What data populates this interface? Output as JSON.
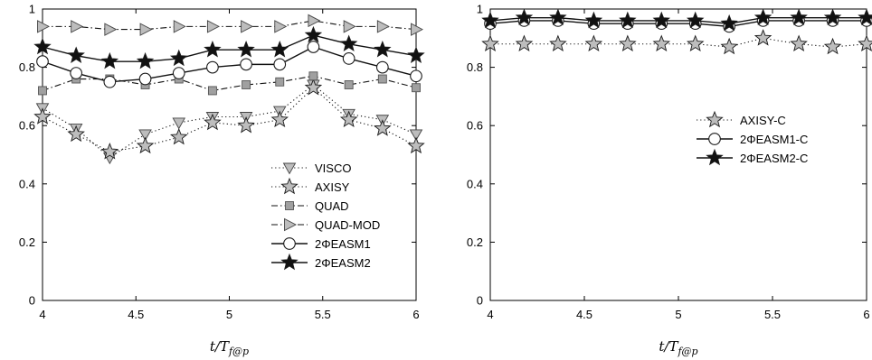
{
  "chart_data": [
    {
      "type": "line",
      "xlabel": "t/T_{f@p}",
      "xlabel_main": "t/T",
      "xlabel_sub": "f@p",
      "ylabel": "",
      "xlim": [
        4,
        6
      ],
      "ylim": [
        0,
        1
      ],
      "xticks": [
        "4",
        "4.5",
        "5",
        "5.5",
        "6"
      ],
      "yticks": [
        "0",
        "0.2",
        "0.4",
        "0.6",
        "0.8",
        "1"
      ],
      "legend_position": "bottom-right",
      "x": [
        4,
        4.18,
        4.36,
        4.55,
        4.73,
        4.91,
        5.09,
        5.27,
        5.45,
        5.64,
        5.82,
        6
      ],
      "series": [
        {
          "name": "VISCO",
          "marker": "triangle-down",
          "line": "dotted",
          "fill": "#bdbdbd",
          "values": [
            0.66,
            0.59,
            0.49,
            0.57,
            0.61,
            0.63,
            0.63,
            0.65,
            0.74,
            0.64,
            0.62,
            0.57
          ]
        },
        {
          "name": "AXISY",
          "marker": "star",
          "line": "dotted",
          "fill": "#bdbdbd",
          "values": [
            0.63,
            0.57,
            0.51,
            0.53,
            0.56,
            0.61,
            0.6,
            0.62,
            0.73,
            0.62,
            0.59,
            0.53
          ]
        },
        {
          "name": "QUAD",
          "marker": "square",
          "line": "dashdot",
          "fill": "#a0a0a0",
          "values": [
            0.72,
            0.76,
            0.76,
            0.74,
            0.76,
            0.72,
            0.74,
            0.75,
            0.77,
            0.74,
            0.76,
            0.73
          ]
        },
        {
          "name": "QUAD-MOD",
          "marker": "triangle-right",
          "line": "dashdot",
          "fill": "#bdbdbd",
          "values": [
            0.94,
            0.94,
            0.93,
            0.93,
            0.94,
            0.94,
            0.94,
            0.94,
            0.96,
            0.94,
            0.94,
            0.93
          ]
        },
        {
          "name": "2ΦEASM1",
          "marker": "circle",
          "line": "solid",
          "fill": "#ffffff",
          "values": [
            0.82,
            0.78,
            0.75,
            0.76,
            0.78,
            0.8,
            0.81,
            0.81,
            0.87,
            0.83,
            0.8,
            0.77
          ]
        },
        {
          "name": "2ΦEASM2",
          "marker": "star",
          "line": "solid",
          "fill": "#111111",
          "values": [
            0.87,
            0.84,
            0.82,
            0.82,
            0.83,
            0.86,
            0.86,
            0.86,
            0.91,
            0.88,
            0.86,
            0.84
          ]
        }
      ]
    },
    {
      "type": "line",
      "xlabel": "t/T_{f@p}",
      "xlabel_main": "t/T",
      "xlabel_sub": "f@p",
      "ylabel": "",
      "xlim": [
        4,
        6
      ],
      "ylim": [
        0,
        1
      ],
      "xticks": [
        "4",
        "4.5",
        "5",
        "5.5",
        "6"
      ],
      "yticks": [
        "0",
        "0.2",
        "0.4",
        "0.6",
        "0.8",
        "1"
      ],
      "legend_position": "center-right",
      "x": [
        4,
        4.18,
        4.36,
        4.55,
        4.73,
        4.91,
        5.09,
        5.27,
        5.45,
        5.64,
        5.82,
        6
      ],
      "series": [
        {
          "name": "AXISY-C",
          "marker": "star",
          "line": "dotted",
          "fill": "#bdbdbd",
          "values": [
            0.88,
            0.88,
            0.88,
            0.88,
            0.88,
            0.88,
            0.88,
            0.87,
            0.9,
            0.88,
            0.87,
            0.88
          ]
        },
        {
          "name": "2ΦEASM1-C",
          "marker": "circle",
          "line": "solid",
          "fill": "#ffffff",
          "values": [
            0.95,
            0.96,
            0.96,
            0.95,
            0.95,
            0.95,
            0.95,
            0.94,
            0.96,
            0.96,
            0.96,
            0.96
          ]
        },
        {
          "name": "2ΦEASM2-C",
          "marker": "star",
          "line": "solid",
          "fill": "#111111",
          "values": [
            0.96,
            0.97,
            0.97,
            0.96,
            0.96,
            0.96,
            0.96,
            0.95,
            0.97,
            0.97,
            0.97,
            0.97
          ]
        }
      ]
    }
  ]
}
